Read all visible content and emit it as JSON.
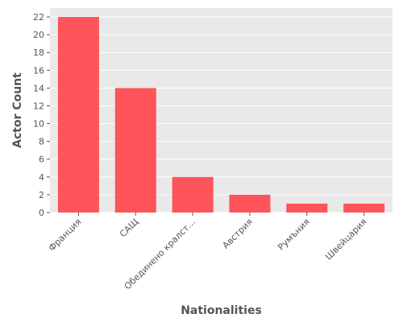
{
  "chart_data": {
    "type": "bar",
    "title": "",
    "xlabel": "Nationalities",
    "ylabel": "Actor Count",
    "categories": [
      "Франция",
      "САЩ",
      "Обединено кралст…",
      "Австрия",
      "Румъния",
      "Швейцария"
    ],
    "values": [
      22,
      14,
      4,
      2,
      1,
      1
    ],
    "ylim": [
      0,
      23
    ],
    "yticks": [
      0,
      2,
      4,
      6,
      8,
      10,
      12,
      14,
      16,
      18,
      20,
      22
    ],
    "grid": true,
    "bar_color": "#ff5459",
    "plot_background": "#e9e9e9",
    "grid_color": "#ffffff"
  }
}
